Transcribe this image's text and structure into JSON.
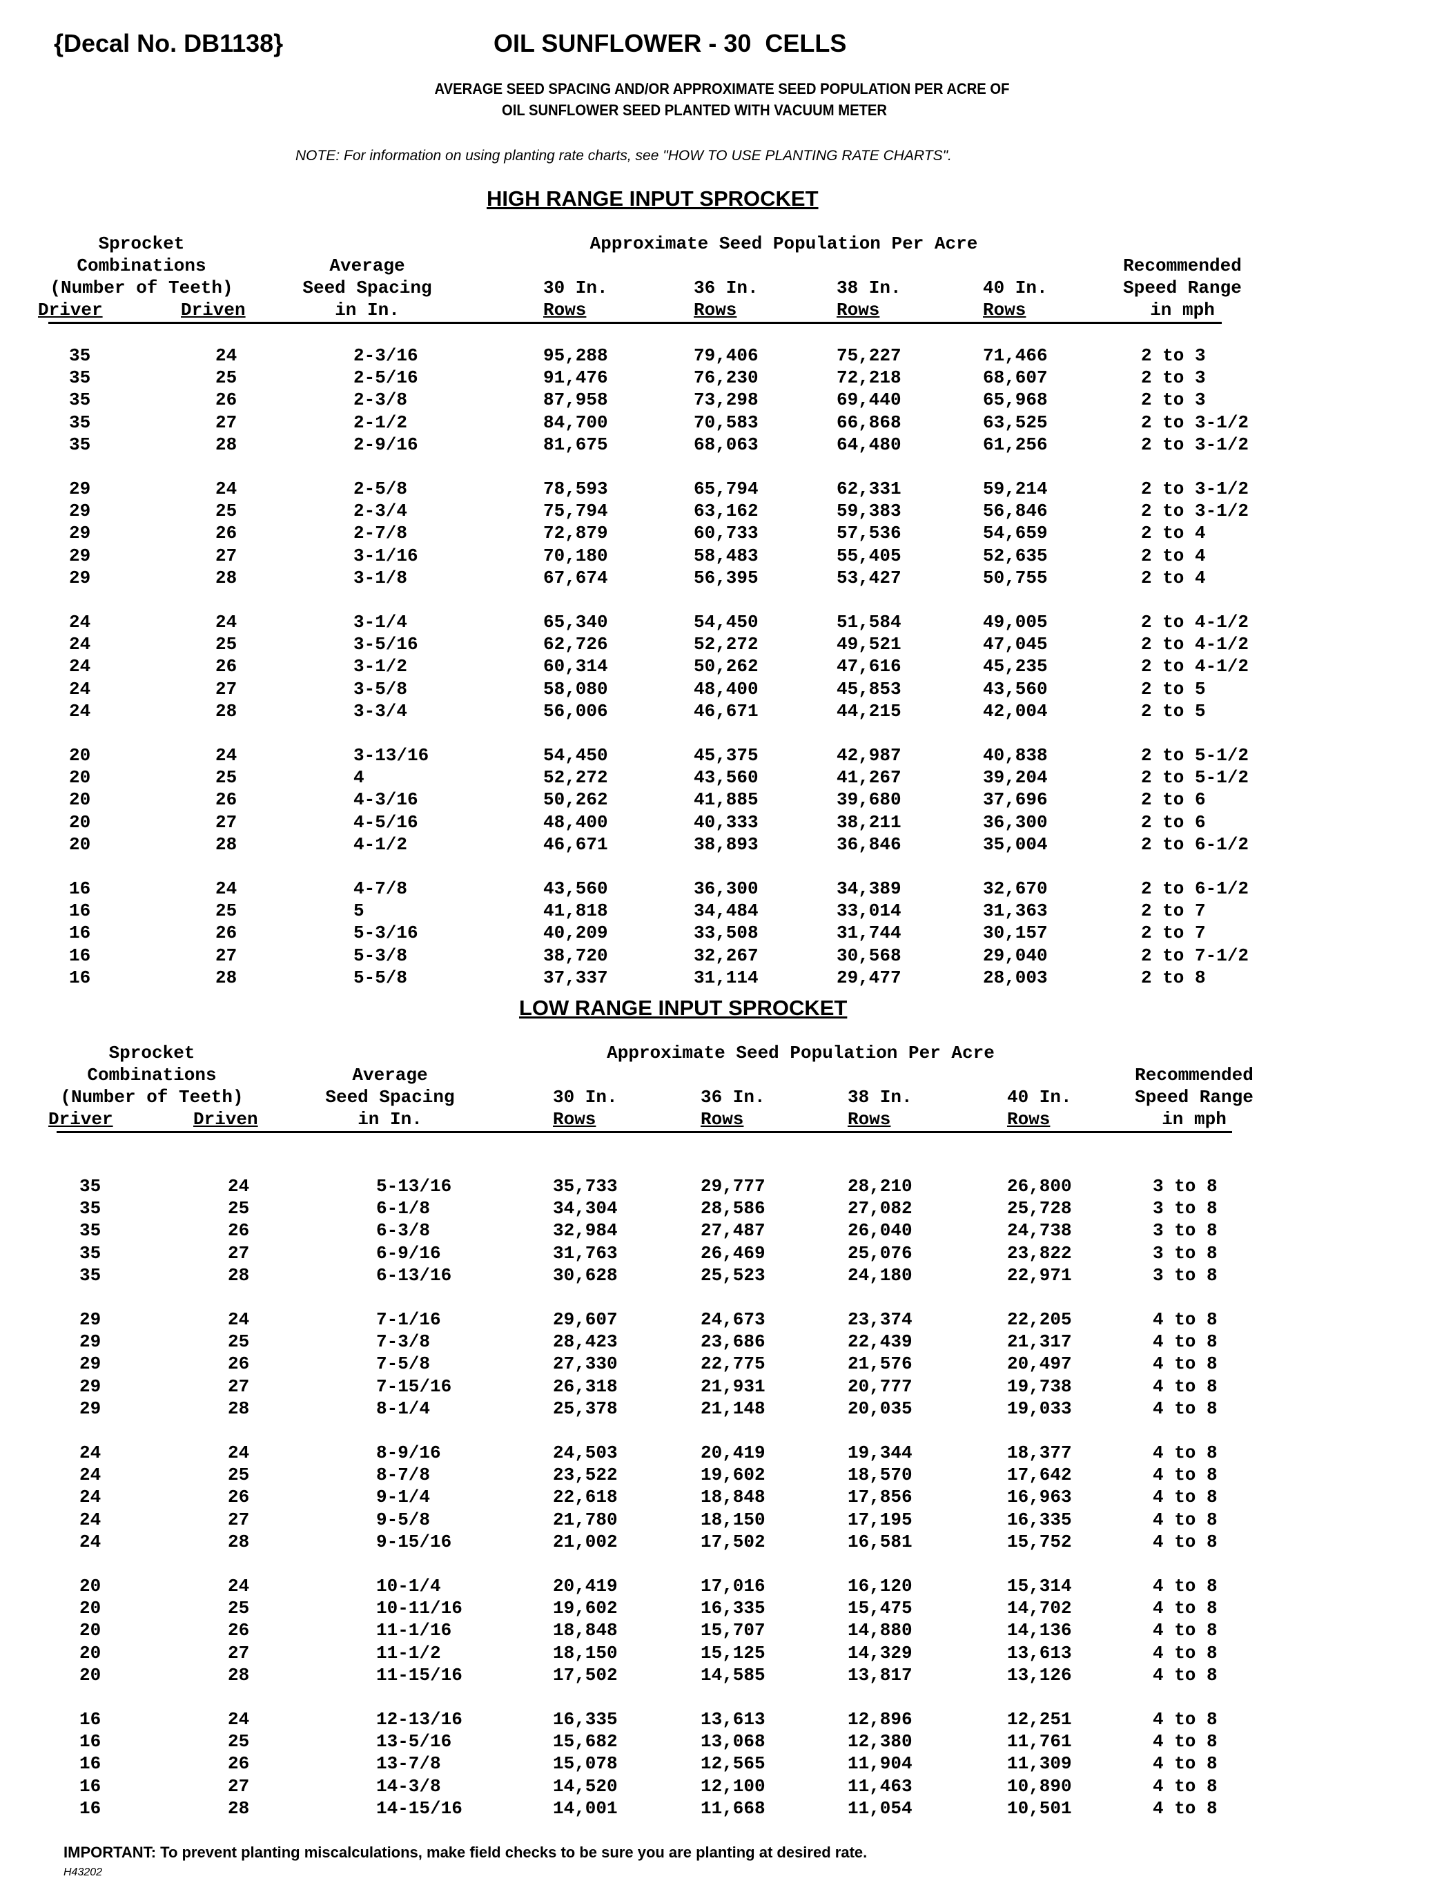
{
  "decal": "{Decal No. DB1138}",
  "title": "OIL SUNFLOWER - 30  CELLS",
  "subtitle_line1": "AVERAGE SEED SPACING AND/OR APPROXIMATE SEED POPULATION PER ACRE OF",
  "subtitle_line2": "OIL SUNFLOWER SEED PLANTED WITH VACUUM METER",
  "note": "NOTE: For information on using planting rate charts, see \"HOW TO USE PLANTING RATE CHARTS\".",
  "headers": {
    "sprocket": "Sprocket",
    "combinations": "Combinations",
    "teeth": "(Number of Teeth)",
    "driver": "Driver",
    "driven": "Driven",
    "average": "Average",
    "seed_spacing": "Seed Spacing",
    "in_in": "in In.",
    "population": "Approximate Seed Population Per Acre",
    "c30": "30 In.",
    "c36": "36 In.",
    "c38": "38 In.",
    "c40": "40 In.",
    "rows": "Rows",
    "recommended": "Recommended",
    "speed_range": "Speed Range",
    "in_mph": "in mph"
  },
  "high_range": {
    "title": "HIGH RANGE INPUT SPROCKET",
    "rows": [
      [
        "35",
        "24",
        "2-3/16",
        "95,288",
        "79,406",
        "75,227",
        "71,466",
        "2 to 3"
      ],
      [
        "35",
        "25",
        "2-5/16",
        "91,476",
        "76,230",
        "72,218",
        "68,607",
        "2 to 3"
      ],
      [
        "35",
        "26",
        "2-3/8",
        "87,958",
        "73,298",
        "69,440",
        "65,968",
        "2 to 3"
      ],
      [
        "35",
        "27",
        "2-1/2",
        "84,700",
        "70,583",
        "66,868",
        "63,525",
        "2 to 3-1/2"
      ],
      [
        "35",
        "28",
        "2-9/16",
        "81,675",
        "68,063",
        "64,480",
        "61,256",
        "2 to 3-1/2"
      ],
      [
        "29",
        "24",
        "2-5/8",
        "78,593",
        "65,794",
        "62,331",
        "59,214",
        "2 to 3-1/2"
      ],
      [
        "29",
        "25",
        "2-3/4",
        "75,794",
        "63,162",
        "59,383",
        "56,846",
        "2 to 3-1/2"
      ],
      [
        "29",
        "26",
        "2-7/8",
        "72,879",
        "60,733",
        "57,536",
        "54,659",
        "2 to 4"
      ],
      [
        "29",
        "27",
        "3-1/16",
        "70,180",
        "58,483",
        "55,405",
        "52,635",
        "2 to 4"
      ],
      [
        "29",
        "28",
        "3-1/8",
        "67,674",
        "56,395",
        "53,427",
        "50,755",
        "2 to 4"
      ],
      [
        "24",
        "24",
        "3-1/4",
        "65,340",
        "54,450",
        "51,584",
        "49,005",
        "2 to 4-1/2"
      ],
      [
        "24",
        "25",
        "3-5/16",
        "62,726",
        "52,272",
        "49,521",
        "47,045",
        "2 to 4-1/2"
      ],
      [
        "24",
        "26",
        "3-1/2",
        "60,314",
        "50,262",
        "47,616",
        "45,235",
        "2 to 4-1/2"
      ],
      [
        "24",
        "27",
        "3-5/8",
        "58,080",
        "48,400",
        "45,853",
        "43,560",
        "2 to 5"
      ],
      [
        "24",
        "28",
        "3-3/4",
        "56,006",
        "46,671",
        "44,215",
        "42,004",
        "2 to 5"
      ],
      [
        "20",
        "24",
        "3-13/16",
        "54,450",
        "45,375",
        "42,987",
        "40,838",
        "2 to 5-1/2"
      ],
      [
        "20",
        "25",
        "4",
        "52,272",
        "43,560",
        "41,267",
        "39,204",
        "2 to 5-1/2"
      ],
      [
        "20",
        "26",
        "4-3/16",
        "50,262",
        "41,885",
        "39,680",
        "37,696",
        "2 to 6"
      ],
      [
        "20",
        "27",
        "4-5/16",
        "48,400",
        "40,333",
        "38,211",
        "36,300",
        "2 to 6"
      ],
      [
        "20",
        "28",
        "4-1/2",
        "46,671",
        "38,893",
        "36,846",
        "35,004",
        "2 to 6-1/2"
      ],
      [
        "16",
        "24",
        "4-7/8",
        "43,560",
        "36,300",
        "34,389",
        "32,670",
        "2 to 6-1/2"
      ],
      [
        "16",
        "25",
        "5",
        "41,818",
        "34,484",
        "33,014",
        "31,363",
        "2 to 7"
      ],
      [
        "16",
        "26",
        "5-3/16",
        "40,209",
        "33,508",
        "31,744",
        "30,157",
        "2 to 7"
      ],
      [
        "16",
        "27",
        "5-3/8",
        "38,720",
        "32,267",
        "30,568",
        "29,040",
        "2 to 7-1/2"
      ],
      [
        "16",
        "28",
        "5-5/8",
        "37,337",
        "31,114",
        "29,477",
        "28,003",
        "2 to 8"
      ]
    ]
  },
  "low_range": {
    "title": "LOW RANGE INPUT SPROCKET",
    "rows": [
      [
        "35",
        "24",
        "5-13/16",
        "35,733",
        "29,777",
        "28,210",
        "26,800",
        "3 to 8"
      ],
      [
        "35",
        "25",
        "6-1/8",
        "34,304",
        "28,586",
        "27,082",
        "25,728",
        "3 to 8"
      ],
      [
        "35",
        "26",
        "6-3/8",
        "32,984",
        "27,487",
        "26,040",
        "24,738",
        "3 to 8"
      ],
      [
        "35",
        "27",
        "6-9/16",
        "31,763",
        "26,469",
        "25,076",
        "23,822",
        "3 to 8"
      ],
      [
        "35",
        "28",
        "6-13/16",
        "30,628",
        "25,523",
        "24,180",
        "22,971",
        "3 to 8"
      ],
      [
        "29",
        "24",
        "7-1/16",
        "29,607",
        "24,673",
        "23,374",
        "22,205",
        "4 to 8"
      ],
      [
        "29",
        "25",
        "7-3/8",
        "28,423",
        "23,686",
        "22,439",
        "21,317",
        "4 to 8"
      ],
      [
        "29",
        "26",
        "7-5/8",
        "27,330",
        "22,775",
        "21,576",
        "20,497",
        "4 to 8"
      ],
      [
        "29",
        "27",
        "7-15/16",
        "26,318",
        "21,931",
        "20,777",
        "19,738",
        "4 to 8"
      ],
      [
        "29",
        "28",
        "8-1/4",
        "25,378",
        "21,148",
        "20,035",
        "19,033",
        "4 to 8"
      ],
      [
        "24",
        "24",
        "8-9/16",
        "24,503",
        "20,419",
        "19,344",
        "18,377",
        "4 to 8"
      ],
      [
        "24",
        "25",
        "8-7/8",
        "23,522",
        "19,602",
        "18,570",
        "17,642",
        "4 to 8"
      ],
      [
        "24",
        "26",
        "9-1/4",
        "22,618",
        "18,848",
        "17,856",
        "16,963",
        "4 to 8"
      ],
      [
        "24",
        "27",
        "9-5/8",
        "21,780",
        "18,150",
        "17,195",
        "16,335",
        "4 to 8"
      ],
      [
        "24",
        "28",
        "9-15/16",
        "21,002",
        "17,502",
        "16,581",
        "15,752",
        "4 to 8"
      ],
      [
        "20",
        "24",
        "10-1/4",
        "20,419",
        "17,016",
        "16,120",
        "15,314",
        "4 to 8"
      ],
      [
        "20",
        "25",
        "10-11/16",
        "19,602",
        "16,335",
        "15,475",
        "14,702",
        "4 to 8"
      ],
      [
        "20",
        "26",
        "11-1/16",
        "18,848",
        "15,707",
        "14,880",
        "14,136",
        "4 to 8"
      ],
      [
        "20",
        "27",
        "11-1/2",
        "18,150",
        "15,125",
        "14,329",
        "13,613",
        "4 to 8"
      ],
      [
        "20",
        "28",
        "11-15/16",
        "17,502",
        "14,585",
        "13,817",
        "13,126",
        "4 to 8"
      ],
      [
        "16",
        "24",
        "12-13/16",
        "16,335",
        "13,613",
        "12,896",
        "12,251",
        "4 to 8"
      ],
      [
        "16",
        "25",
        "13-5/16",
        "15,682",
        "13,068",
        "12,380",
        "11,761",
        "4 to 8"
      ],
      [
        "16",
        "26",
        "13-7/8",
        "15,078",
        "12,565",
        "11,904",
        "11,309",
        "4 to 8"
      ],
      [
        "16",
        "27",
        "14-3/8",
        "14,520",
        "12,100",
        "11,463",
        "10,890",
        "4 to 8"
      ],
      [
        "16",
        "28",
        "14-15/16",
        "14,001",
        "11,668",
        "11,054",
        "10,501",
        "4 to 8"
      ]
    ]
  },
  "important": "IMPORTANT: To prevent planting miscalculations, make field checks to be sure you are planting at desired rate.",
  "code": "H43202"
}
